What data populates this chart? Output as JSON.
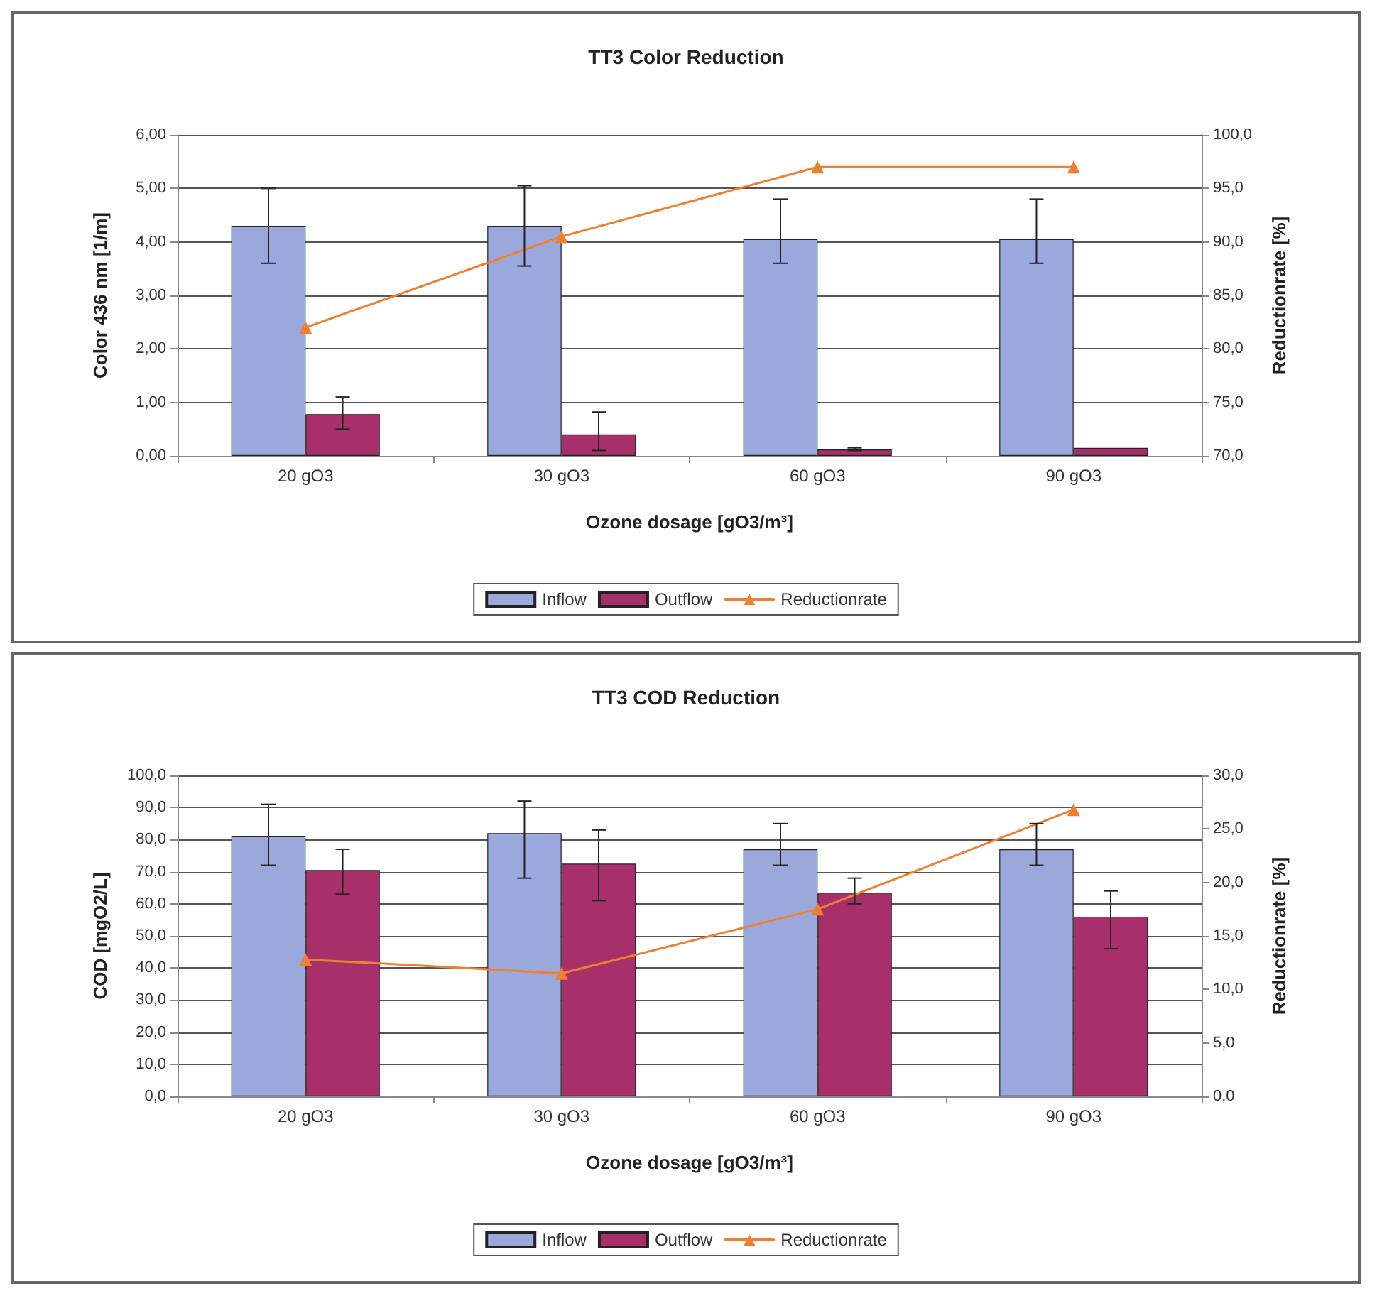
{
  "chart_data": [
    {
      "type": "bar",
      "title": "TT3 Color Reduction",
      "xlabel": "Ozone dosage [gO3/m³]",
      "ylabel": "Color 436 nm [1/m]",
      "y2label": "Reductionrate [%]",
      "categories": [
        "20 gO3",
        "30 gO3",
        "60 gO3",
        "90 gO3"
      ],
      "series": [
        {
          "name": "Inflow",
          "color": "#9aa8dc",
          "values": [
            4.3,
            4.3,
            4.05,
            4.05
          ],
          "errors": [
            [
              3.6,
              5.0
            ],
            [
              3.55,
              5.05
            ],
            [
              3.6,
              4.8
            ],
            [
              3.6,
              4.8
            ]
          ]
        },
        {
          "name": "Outflow",
          "color": "#a8306a",
          "values": [
            0.78,
            0.4,
            0.12,
            0.15
          ],
          "errors": [
            [
              0.5,
              1.1
            ],
            [
              0.1,
              0.82
            ],
            [
              0.1,
              0.15
            ],
            null
          ]
        },
        {
          "name": "Reductionrate",
          "type": "line",
          "axis": "y2",
          "color": "#f07f30",
          "marker": "triangle",
          "values": [
            82,
            90.5,
            97,
            97
          ]
        }
      ],
      "ylim": [
        0,
        6
      ],
      "yticks": [
        {
          "value": 0,
          "label": "0,00"
        },
        {
          "value": 1,
          "label": "1,00"
        },
        {
          "value": 2,
          "label": "2,00"
        },
        {
          "value": 3,
          "label": "3,00"
        },
        {
          "value": 4,
          "label": "4,00"
        },
        {
          "value": 5,
          "label": "5,00"
        },
        {
          "value": 6,
          "label": "6,00"
        }
      ],
      "y2lim": [
        70,
        100
      ],
      "y2ticks": [
        {
          "value": 70,
          "label": "70,0"
        },
        {
          "value": 75,
          "label": "75,0"
        },
        {
          "value": 80,
          "label": "80,0"
        },
        {
          "value": 85,
          "label": "85,0"
        },
        {
          "value": 90,
          "label": "90,0"
        },
        {
          "value": 95,
          "label": "95,0"
        },
        {
          "value": 100,
          "label": "100,0"
        }
      ],
      "grid": "y",
      "legend": "bottom"
    },
    {
      "type": "bar",
      "title": "TT3 COD Reduction",
      "xlabel": "Ozone dosage [gO3/m³]",
      "ylabel": "COD [mgO2/L]",
      "y2label": "Reductionrate [%]",
      "categories": [
        "20 gO3",
        "30 gO3",
        "60 gO3",
        "90 gO3"
      ],
      "series": [
        {
          "name": "Inflow",
          "color": "#9aa8dc",
          "values": [
            81,
            82,
            77,
            77
          ],
          "errors": [
            [
              72,
              91
            ],
            [
              68,
              92
            ],
            [
              72,
              85
            ],
            [
              72,
              85
            ]
          ]
        },
        {
          "name": "Outflow",
          "color": "#a8306a",
          "values": [
            70.5,
            72.5,
            63.5,
            56
          ],
          "errors": [
            [
              63,
              77
            ],
            [
              61,
              83
            ],
            [
              60,
              68
            ],
            [
              46,
              64
            ]
          ]
        },
        {
          "name": "Reductionrate",
          "type": "line",
          "axis": "y2",
          "color": "#f07f30",
          "marker": "triangle",
          "values": [
            12.8,
            11.5,
            17.5,
            26.8
          ]
        }
      ],
      "ylim": [
        0,
        100
      ],
      "yticks": [
        {
          "value": 0,
          "label": "0,0"
        },
        {
          "value": 10,
          "label": "10,0"
        },
        {
          "value": 20,
          "label": "20,0"
        },
        {
          "value": 30,
          "label": "30,0"
        },
        {
          "value": 40,
          "label": "40,0"
        },
        {
          "value": 50,
          "label": "50,0"
        },
        {
          "value": 60,
          "label": "60,0"
        },
        {
          "value": 70,
          "label": "70,0"
        },
        {
          "value": 80,
          "label": "80,0"
        },
        {
          "value": 90,
          "label": "90,0"
        },
        {
          "value": 100,
          "label": "100,0"
        }
      ],
      "y2lim": [
        0,
        30
      ],
      "y2ticks": [
        {
          "value": 0,
          "label": "0,0"
        },
        {
          "value": 5,
          "label": "5,0"
        },
        {
          "value": 10,
          "label": "10,0"
        },
        {
          "value": 15,
          "label": "15,0"
        },
        {
          "value": 20,
          "label": "20,0"
        },
        {
          "value": 25,
          "label": "25,0"
        },
        {
          "value": 30,
          "label": "30,0"
        }
      ],
      "grid": "y",
      "legend": "bottom"
    }
  ]
}
